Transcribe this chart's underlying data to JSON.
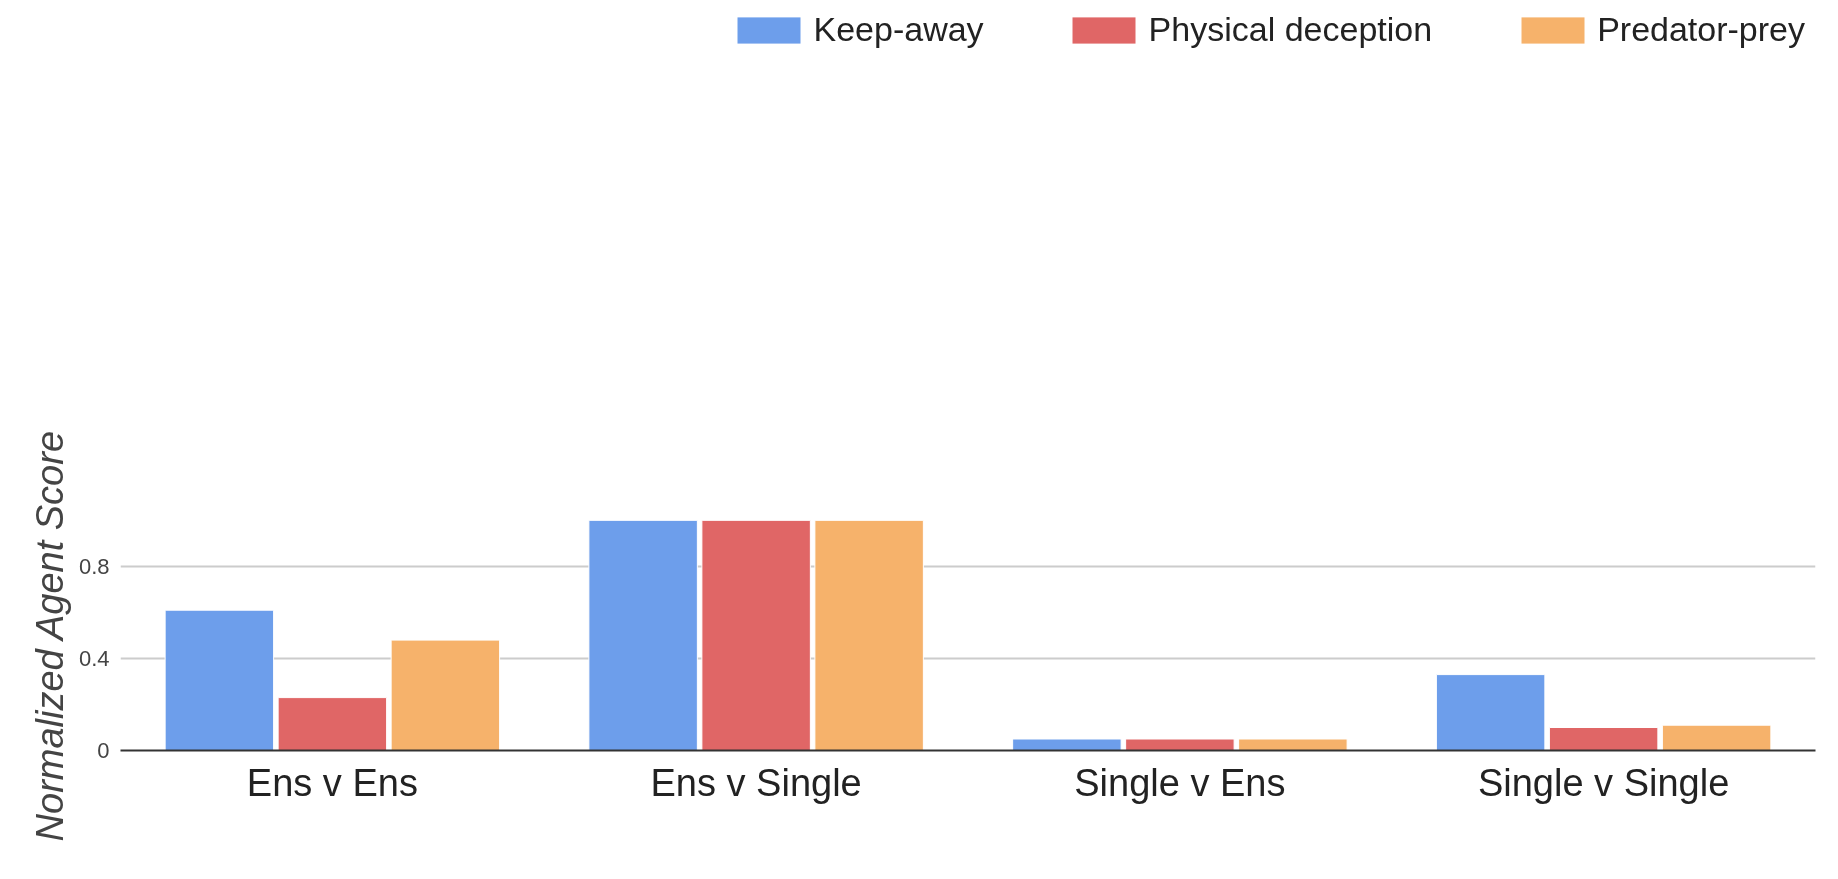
{
  "chart_data": {
    "type": "bar",
    "ylabel": "Normalized Agent Score",
    "categories": [
      "Ens v Ens",
      "Ens v Single",
      "Single v Ens",
      "Single v Single"
    ],
    "series": [
      {
        "name": "Keep-away",
        "color": "#6d9eeb",
        "values": [
          0.61,
          1.0,
          0.05,
          0.33
        ]
      },
      {
        "name": "Physical deception",
        "color": "#e06666",
        "values": [
          0.23,
          1.0,
          0.05,
          0.1
        ]
      },
      {
        "name": "Predator-prey",
        "color": "#f6b26b",
        "values": [
          0.48,
          1.0,
          0.05,
          0.11
        ]
      }
    ],
    "ylim": [
      0,
      1.0
    ],
    "yticks": [
      0,
      0.4,
      0.8
    ],
    "grid": "y",
    "legend": "top"
  }
}
